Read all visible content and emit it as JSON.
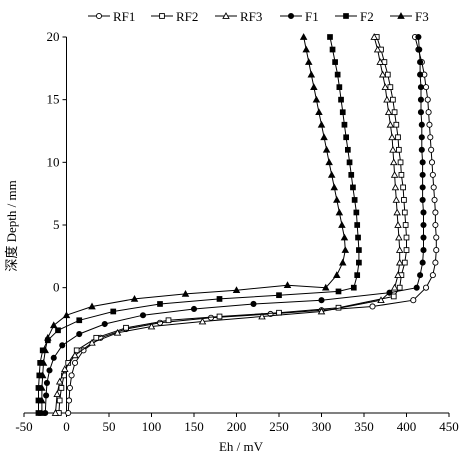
{
  "chart_data": {
    "type": "line",
    "xlabel": "Eh / mV",
    "ylabel": "深度 Depth / mm",
    "xlim": [
      -50,
      450
    ],
    "ylim": [
      -10,
      20
    ],
    "x_ticks": [
      "-50",
      "0",
      "50",
      "100",
      "150",
      "200",
      "250",
      "300",
      "350",
      "400",
      "450"
    ],
    "y_ticks": [
      "0",
      "5",
      "10",
      "15",
      "20"
    ],
    "legend_position": "top",
    "series": [
      {
        "name": "RF1",
        "marker": "circle-open",
        "points": [
          [
            410,
            20
          ],
          [
            414,
            19
          ],
          [
            418,
            18
          ],
          [
            421,
            17
          ],
          [
            423,
            16
          ],
          [
            425,
            15
          ],
          [
            426,
            14
          ],
          [
            427,
            13
          ],
          [
            428,
            12
          ],
          [
            429,
            11
          ],
          [
            430,
            10
          ],
          [
            431,
            9
          ],
          [
            432,
            8
          ],
          [
            433,
            7
          ],
          [
            434,
            6
          ],
          [
            434,
            5
          ],
          [
            435,
            4
          ],
          [
            435,
            3
          ],
          [
            434,
            2
          ],
          [
            431,
            1
          ],
          [
            423,
            0
          ],
          [
            408,
            -1
          ],
          [
            360,
            -1.5
          ],
          [
            300,
            -1.8
          ],
          [
            240,
            -2.1
          ],
          [
            170,
            -2.4
          ],
          [
            110,
            -2.8
          ],
          [
            70,
            -3.3
          ],
          [
            40,
            -4
          ],
          [
            20,
            -5
          ],
          [
            10,
            -6
          ],
          [
            6,
            -7
          ],
          [
            4,
            -8
          ],
          [
            3,
            -9
          ],
          [
            2,
            -10
          ]
        ]
      },
      {
        "name": "RF2",
        "marker": "square-open",
        "points": [
          [
            365,
            20
          ],
          [
            370,
            19
          ],
          [
            374,
            18
          ],
          [
            378,
            17
          ],
          [
            381,
            16
          ],
          [
            384,
            15
          ],
          [
            386,
            14
          ],
          [
            388,
            13
          ],
          [
            390,
            12
          ],
          [
            391,
            11
          ],
          [
            393,
            10
          ],
          [
            394,
            9
          ],
          [
            396,
            8
          ],
          [
            397,
            7
          ],
          [
            398,
            6
          ],
          [
            399,
            5
          ],
          [
            400,
            4
          ],
          [
            400,
            3
          ],
          [
            398,
            2
          ],
          [
            394,
            1
          ],
          [
            392,
            0
          ],
          [
            385,
            -0.7
          ],
          [
            320,
            -1.6
          ],
          [
            250,
            -2
          ],
          [
            180,
            -2.3
          ],
          [
            120,
            -2.6
          ],
          [
            70,
            -3.2
          ],
          [
            35,
            -4
          ],
          [
            12,
            -5
          ],
          [
            2,
            -6
          ],
          [
            -3,
            -7
          ],
          [
            -6,
            -8
          ],
          [
            -8,
            -9
          ],
          [
            -9,
            -10
          ]
        ]
      },
      {
        "name": "RF3",
        "marker": "triangle-open",
        "points": [
          [
            362,
            20
          ],
          [
            366,
            19
          ],
          [
            369,
            18
          ],
          [
            372,
            17
          ],
          [
            375,
            16
          ],
          [
            377,
            15
          ],
          [
            379,
            14
          ],
          [
            381,
            13
          ],
          [
            383,
            12
          ],
          [
            384,
            11
          ],
          [
            385,
            10
          ],
          [
            386,
            9
          ],
          [
            387,
            8
          ],
          [
            388,
            7
          ],
          [
            389,
            6
          ],
          [
            390,
            5
          ],
          [
            391,
            4
          ],
          [
            392,
            3
          ],
          [
            392,
            2
          ],
          [
            390,
            1
          ],
          [
            386,
            0
          ],
          [
            370,
            -1
          ],
          [
            300,
            -1.9
          ],
          [
            230,
            -2.3
          ],
          [
            160,
            -2.7
          ],
          [
            100,
            -3.1
          ],
          [
            60,
            -3.6
          ],
          [
            30,
            -4.4
          ],
          [
            10,
            -5.4
          ],
          [
            -2,
            -6.5
          ],
          [
            -8,
            -7.5
          ],
          [
            -11,
            -8.5
          ],
          [
            -13,
            -10
          ]
        ]
      },
      {
        "name": "F1",
        "marker": "circle-filled",
        "points": [
          [
            414,
            20
          ],
          [
            415,
            19
          ],
          [
            416,
            18
          ],
          [
            416,
            17
          ],
          [
            417,
            16
          ],
          [
            417,
            15
          ],
          [
            417,
            14
          ],
          [
            418,
            13
          ],
          [
            418,
            12
          ],
          [
            418,
            11
          ],
          [
            419,
            10
          ],
          [
            419,
            9
          ],
          [
            419,
            8
          ],
          [
            419,
            7
          ],
          [
            420,
            6
          ],
          [
            420,
            5
          ],
          [
            420,
            4
          ],
          [
            420,
            3
          ],
          [
            419,
            2
          ],
          [
            416,
            1
          ],
          [
            412,
            0
          ],
          [
            380,
            -0.4
          ],
          [
            300,
            -1
          ],
          [
            220,
            -1.3
          ],
          [
            150,
            -1.7
          ],
          [
            90,
            -2.2
          ],
          [
            45,
            -2.9
          ],
          [
            15,
            -3.7
          ],
          [
            -5,
            -4.6
          ],
          [
            -15,
            -5.6
          ],
          [
            -20,
            -6.6
          ],
          [
            -23,
            -7.6
          ],
          [
            -24,
            -8.6
          ],
          [
            -25,
            -10
          ]
        ]
      },
      {
        "name": "F2",
        "marker": "square-filled",
        "points": [
          [
            310,
            20
          ],
          [
            313,
            19
          ],
          [
            316,
            18
          ],
          [
            319,
            17
          ],
          [
            321,
            16
          ],
          [
            323,
            15
          ],
          [
            325,
            14
          ],
          [
            327,
            13
          ],
          [
            329,
            12
          ],
          [
            331,
            11
          ],
          [
            333,
            10
          ],
          [
            335,
            9
          ],
          [
            337,
            8
          ],
          [
            339,
            7
          ],
          [
            341,
            6
          ],
          [
            342,
            5
          ],
          [
            343,
            4
          ],
          [
            344,
            3
          ],
          [
            344,
            2
          ],
          [
            342,
            1
          ],
          [
            338,
            0
          ],
          [
            320,
            -0.3
          ],
          [
            250,
            -0.6
          ],
          [
            180,
            -0.9
          ],
          [
            110,
            -1.3
          ],
          [
            55,
            -1.9
          ],
          [
            15,
            -2.6
          ],
          [
            -10,
            -3.4
          ],
          [
            -22,
            -4.2
          ],
          [
            -28,
            -5
          ],
          [
            -31,
            -6
          ],
          [
            -32,
            -7
          ],
          [
            -33,
            -8
          ],
          [
            -33,
            -9
          ],
          [
            -33,
            -10
          ]
        ]
      },
      {
        "name": "F3",
        "marker": "triangle-filled",
        "points": [
          [
            279,
            20
          ],
          [
            282,
            19
          ],
          [
            285,
            18
          ],
          [
            288,
            17
          ],
          [
            291,
            16
          ],
          [
            294,
            15
          ],
          [
            297,
            14
          ],
          [
            300,
            13
          ],
          [
            303,
            12
          ],
          [
            306,
            11
          ],
          [
            309,
            10
          ],
          [
            312,
            9
          ],
          [
            315,
            8
          ],
          [
            318,
            7
          ],
          [
            321,
            6
          ],
          [
            324,
            5
          ],
          [
            327,
            4
          ],
          [
            328,
            3
          ],
          [
            325,
            2
          ],
          [
            318,
            1
          ],
          [
            305,
            0
          ],
          [
            260,
            0.2
          ],
          [
            200,
            -0.2
          ],
          [
            140,
            -0.5
          ],
          [
            80,
            -0.9
          ],
          [
            30,
            -1.5
          ],
          [
            0,
            -2.2
          ],
          [
            -15,
            -3
          ],
          [
            -22,
            -4
          ],
          [
            -25,
            -5
          ],
          [
            -27,
            -6
          ],
          [
            -28,
            -7
          ],
          [
            -29,
            -8
          ],
          [
            -29,
            -9
          ],
          [
            -29,
            -10
          ]
        ]
      }
    ]
  }
}
